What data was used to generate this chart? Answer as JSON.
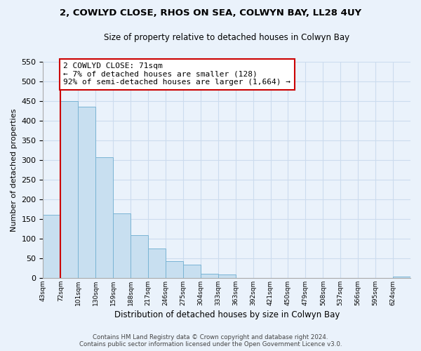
{
  "title": "2, COWLYD CLOSE, RHOS ON SEA, COLWYN BAY, LL28 4UY",
  "subtitle": "Size of property relative to detached houses in Colwyn Bay",
  "xlabel": "Distribution of detached houses by size in Colwyn Bay",
  "ylabel": "Number of detached properties",
  "bar_color": "#c8dff0",
  "bar_edge_color": "#7ab4d4",
  "grid_color": "#ccdcee",
  "background_color": "#eaf2fb",
  "tick_labels": [
    "43sqm",
    "72sqm",
    "101sqm",
    "130sqm",
    "159sqm",
    "188sqm",
    "217sqm",
    "246sqm",
    "275sqm",
    "304sqm",
    "333sqm",
    "363sqm",
    "392sqm",
    "421sqm",
    "450sqm",
    "479sqm",
    "508sqm",
    "537sqm",
    "566sqm",
    "595sqm",
    "624sqm"
  ],
  "bar_heights": [
    160,
    450,
    435,
    308,
    165,
    108,
    75,
    43,
    33,
    10,
    8,
    0,
    0,
    0,
    0,
    0,
    0,
    0,
    0,
    0,
    3
  ],
  "ylim": [
    0,
    550
  ],
  "yticks": [
    0,
    50,
    100,
    150,
    200,
    250,
    300,
    350,
    400,
    450,
    500,
    550
  ],
  "property_line_x": 1,
  "property_line_color": "#cc0000",
  "annotation_title": "2 COWLYD CLOSE: 71sqm",
  "annotation_line1": "← 7% of detached houses are smaller (128)",
  "annotation_line2": "92% of semi-detached houses are larger (1,664) →",
  "annotation_box_color": "#ffffff",
  "annotation_box_edge": "#cc0000",
  "footer_line1": "Contains HM Land Registry data © Crown copyright and database right 2024.",
  "footer_line2": "Contains public sector information licensed under the Open Government Licence v3.0."
}
